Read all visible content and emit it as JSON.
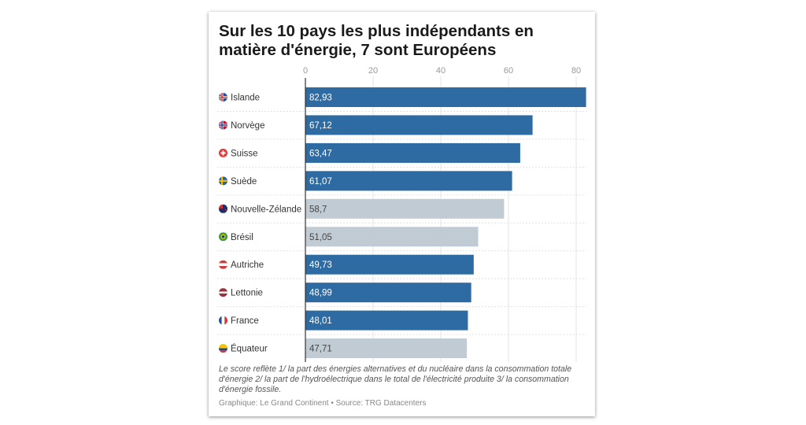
{
  "chart_data": {
    "type": "bar",
    "orientation": "horizontal",
    "title": "Sur les 10 pays les plus indépendants en matière d'énergie, 7 sont Européens",
    "categories": [
      "Islande",
      "Norvège",
      "Suisse",
      "Suède",
      "Nouvelle-Zélande",
      "Brésil",
      "Autriche",
      "Lettonie",
      "France",
      "Équateur"
    ],
    "values": [
      82.93,
      67.12,
      63.47,
      61.07,
      58.7,
      51.05,
      49.73,
      48.99,
      48.01,
      47.71
    ],
    "value_labels": [
      "82,93",
      "67,12",
      "63,47",
      "61,07",
      "58,7",
      "51,05",
      "49,73",
      "48,99",
      "48,01",
      "47,71"
    ],
    "european": [
      true,
      true,
      true,
      true,
      false,
      false,
      true,
      true,
      true,
      false
    ],
    "flags": [
      "iceland-flag-icon",
      "norway-flag-icon",
      "switzerland-flag-icon",
      "sweden-flag-icon",
      "new-zealand-flag-icon",
      "brazil-flag-icon",
      "austria-flag-icon",
      "latvia-flag-icon",
      "france-flag-icon",
      "ecuador-flag-icon"
    ],
    "xticks": [
      0,
      20,
      40,
      60,
      80
    ],
    "xlim": [
      0,
      83
    ],
    "axis_position": "top",
    "grid": true,
    "colors": {
      "european": "#2f6ba3",
      "other": "#c1cbd4"
    },
    "note": "Le score reflète 1/ la part des énergies alternatives et du nucléaire dans la consommation totale d'énergie 2/ la part de l'hydroélectrique dans le total de l'électricité produite 3/ la consommation d'énergie fossile.",
    "source": "Graphique: Le Grand Continent • Source: TRG Datacenters"
  }
}
